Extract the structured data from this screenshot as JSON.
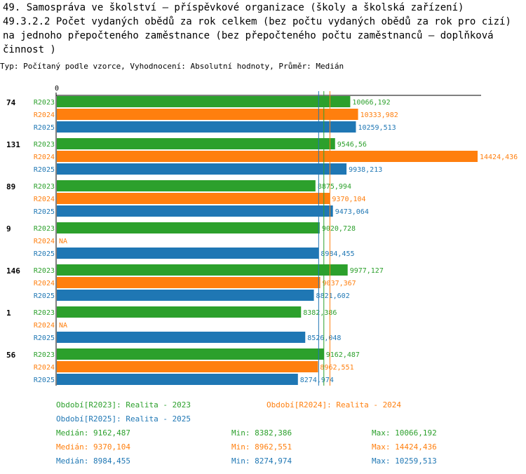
{
  "title": "49. Samospráva ve školství – příspěvkové organizace (školy a školská zařízení)\n49.3.2.2 Počet vydaných obědů za rok celkem (bez počtu vydaných obědů za rok pro cizí) na jednoho přepočteného zaměstnance (bez přepočteného počtu zaměstnanců – doplňková činnost )",
  "subtitle": "Typ: Počítaný podle vzorce, Vyhodnocení: Absolutní hodnoty, Průměr: Medián",
  "colors": {
    "R2023": "#2ca02c",
    "R2024": "#ff7f0e",
    "R2025": "#1f77b4"
  },
  "chart_data": {
    "type": "bar",
    "orientation": "horizontal",
    "x_axis_origin_label": "0",
    "xlim": [
      0,
      14424.436
    ],
    "series_names": [
      "R2023",
      "R2024",
      "R2025"
    ],
    "groups": [
      {
        "label": "74",
        "values": [
          10066.192,
          10333.982,
          10259.513
        ],
        "labels": [
          "10066,192",
          "10333,982",
          "10259,513"
        ]
      },
      {
        "label": "131",
        "values": [
          9546.56,
          14424.436,
          9938.213
        ],
        "labels": [
          "9546,56",
          "14424,436",
          "9938,213"
        ]
      },
      {
        "label": "89",
        "values": [
          8875.994,
          9370.104,
          9473.064
        ],
        "labels": [
          "8875,994",
          "9370,104",
          "9473,064"
        ]
      },
      {
        "label": "9",
        "values": [
          9020.728,
          null,
          8984.455
        ],
        "labels": [
          "9020,728",
          "NA",
          "8984,455"
        ]
      },
      {
        "label": "146",
        "values": [
          9977.127,
          9037.367,
          8821.602
        ],
        "labels": [
          "9977,127",
          "9037,367",
          "8821,602"
        ]
      },
      {
        "label": "1",
        "values": [
          8382.386,
          null,
          8526.048
        ],
        "labels": [
          "8382,386",
          "NA",
          "8526,048"
        ]
      },
      {
        "label": "56",
        "values": [
          9162.487,
          8962.551,
          8274.974
        ],
        "labels": [
          "9162,487",
          "8962,551",
          "8274,974"
        ]
      }
    ],
    "median_lines": [
      9162.487,
      9370.104,
      8984.455
    ]
  },
  "legend": {
    "r2023": "Období[R2023]: Realita - 2023",
    "r2024": "Období[R2024]: Realita - 2024",
    "r2025": "Období[R2025]: Realita - 2025"
  },
  "stats": {
    "r2023": {
      "median": "Medián: 9162,487",
      "min": "Min: 8382,386",
      "max": "Max: 10066,192"
    },
    "r2024": {
      "median": "Medián: 9370,104",
      "min": "Min: 8962,551",
      "max": "Max: 14424,436"
    },
    "r2025": {
      "median": "Medián: 8984,455",
      "min": "Min: 8274,974",
      "max": "Max: 10259,513"
    }
  }
}
